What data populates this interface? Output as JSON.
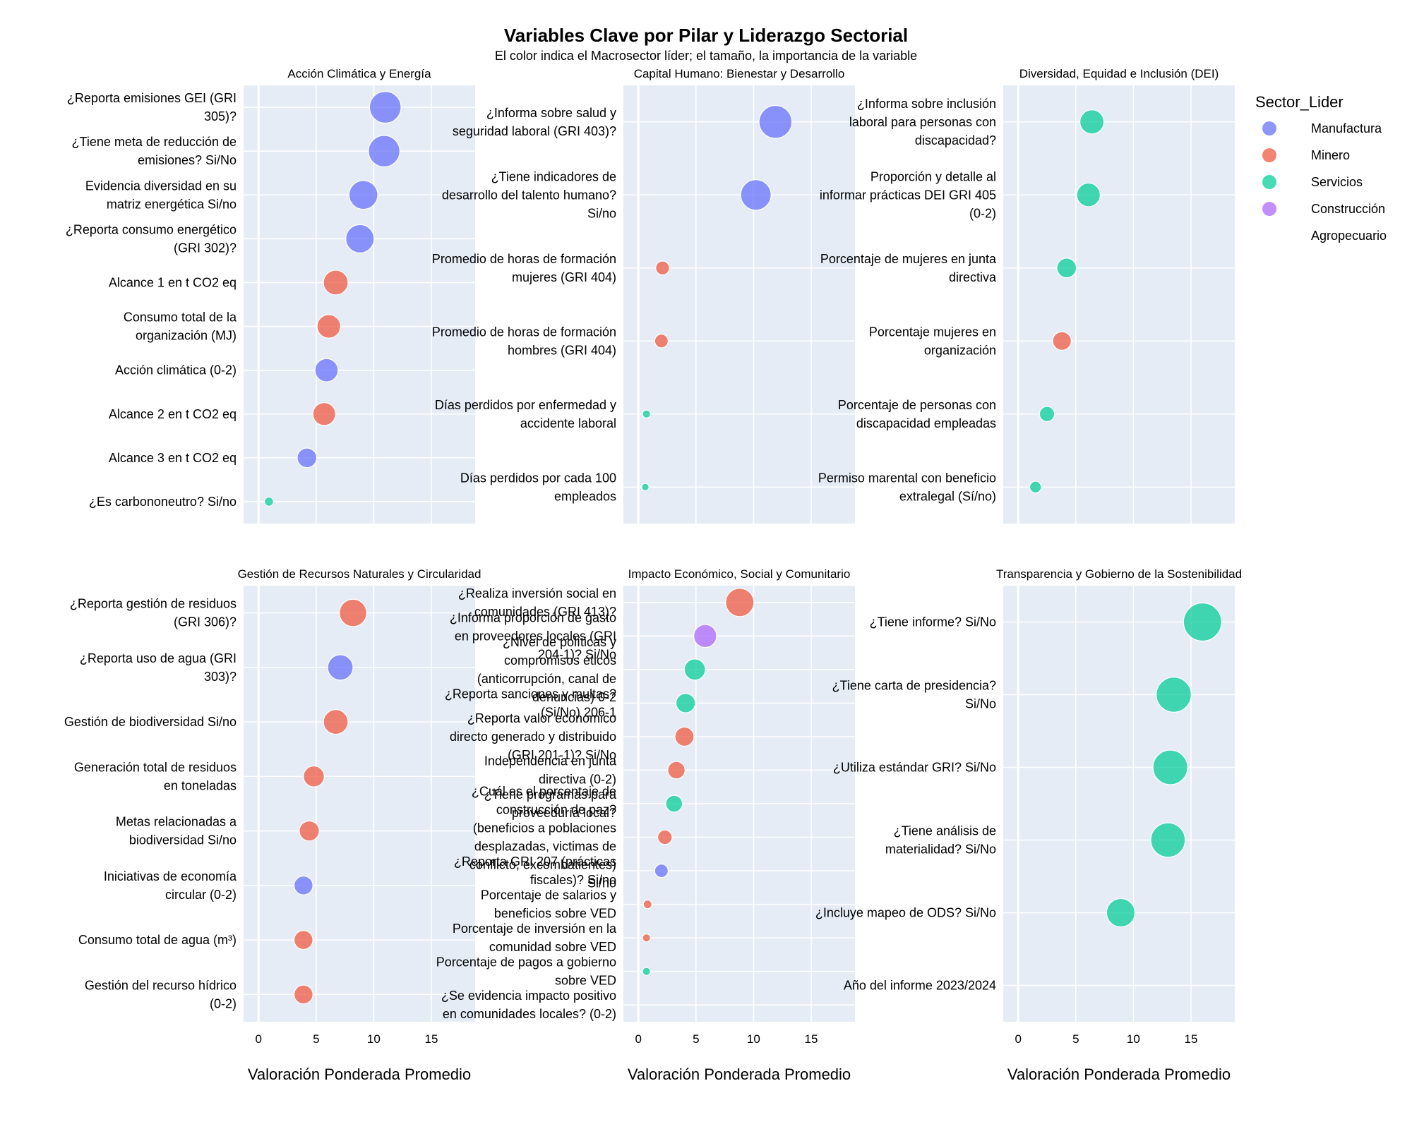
{
  "chart_data": {
    "type": "scatter",
    "title": "Variables Clave por Pilar y Liderazgo Sectorial",
    "subtitle": "El color indica el Macrosector líder; el tamaño, la importancia de la variable",
    "xlabel": "Valoración Ponderada Promedio",
    "xlim": [
      -1.3,
      18.8
    ],
    "xticks": [
      0,
      5,
      10,
      15
    ],
    "grid": true,
    "legend": {
      "title": "Sector_Lider",
      "placement": "top-right",
      "entries": [
        {
          "name": "Manufactura",
          "color": "#636efa"
        },
        {
          "name": "Minero",
          "color": "#ef553b"
        },
        {
          "name": "Servicios",
          "color": "#00cc96"
        },
        {
          "name": "Construcción",
          "color": "#ab63fa"
        },
        {
          "name": "Agropecuario",
          "color": ""
        }
      ]
    },
    "panels": [
      {
        "title": "Acción Climática y Energía",
        "points": [
          {
            "label": "¿Reporta emisiones GEI (GRI 305)?",
            "value": 11.0,
            "sector": "Manufactura"
          },
          {
            "label": "¿Tiene meta de reducción de emisiones? Si/No",
            "value": 10.9,
            "sector": "Manufactura"
          },
          {
            "label": "Evidencia diversidad en su matriz energética Si/no",
            "value": 9.1,
            "sector": "Manufactura"
          },
          {
            "label": "¿Reporta consumo energético (GRI 302)?",
            "value": 8.8,
            "sector": "Manufactura"
          },
          {
            "label": "Alcance 1 en t CO2 eq",
            "value": 6.7,
            "sector": "Minero"
          },
          {
            "label": "Consumo total de la organización (MJ)",
            "value": 6.1,
            "sector": "Minero"
          },
          {
            "label": "Acción climática (0-2)",
            "value": 5.9,
            "sector": "Manufactura"
          },
          {
            "label": "Alcance 2 en t CO2 eq",
            "value": 5.7,
            "sector": "Minero"
          },
          {
            "label": "Alcance 3 en t CO2 eq",
            "value": 4.2,
            "sector": "Manufactura"
          },
          {
            "label": "¿Es carbononeutro? Si/no",
            "value": 0.9,
            "sector": "Servicios"
          }
        ]
      },
      {
        "title": "Capital Humano: Bienestar y Desarrollo",
        "points": [
          {
            "label": "¿Informa sobre salud y seguridad laboral (GRI 403)?",
            "value": 11.9,
            "sector": "Manufactura"
          },
          {
            "label": "¿Tiene indicadores de desarrollo del talento humano? Si/no",
            "value": 10.2,
            "sector": "Manufactura"
          },
          {
            "label": "Promedio de horas de formación mujeres (GRI 404)",
            "value": 2.1,
            "sector": "Minero"
          },
          {
            "label": "Promedio de horas de formación hombres (GRI 404)",
            "value": 2.0,
            "sector": "Minero"
          },
          {
            "label": "Días perdidos por enfermedad y accidente laboral",
            "value": 0.7,
            "sector": "Servicios"
          },
          {
            "label": "Días perdidos por cada 100 empleados",
            "value": 0.6,
            "sector": "Servicios"
          }
        ]
      },
      {
        "title": "Diversidad, Equidad e Inclusión (DEI)",
        "points": [
          {
            "label": "¿Informa sobre inclusión laboral para personas con discapacidad?",
            "value": 6.4,
            "sector": "Servicios"
          },
          {
            "label": "Proporción y detalle al informar prácticas DEI GRI 405 (0-2)",
            "value": 6.1,
            "sector": "Servicios"
          },
          {
            "label": "Porcentaje de mujeres en junta directiva",
            "value": 4.2,
            "sector": "Servicios"
          },
          {
            "label": "Porcentaje mujeres en organización",
            "value": 3.8,
            "sector": "Minero"
          },
          {
            "label": "Porcentaje de personas con discapacidad empleadas",
            "value": 2.5,
            "sector": "Servicios"
          },
          {
            "label": "Permiso marental con beneficio extralegal (Sí/no)",
            "value": 1.5,
            "sector": "Servicios"
          }
        ]
      },
      {
        "title": "Gestión de Recursos Naturales y Circularidad",
        "points": [
          {
            "label": "¿Reporta gestión de residuos (GRI 306)?",
            "value": 8.2,
            "sector": "Minero"
          },
          {
            "label": "¿Reporta uso de agua (GRI 303)?",
            "value": 7.1,
            "sector": "Manufactura"
          },
          {
            "label": "Gestión de biodiversidad Si/no",
            "value": 6.7,
            "sector": "Minero"
          },
          {
            "label": "Generación total de residuos en toneladas",
            "value": 4.8,
            "sector": "Minero"
          },
          {
            "label": "Metas relacionadas a biodiversidad Si/no",
            "value": 4.4,
            "sector": "Minero"
          },
          {
            "label": "Iniciativas de economía circular (0-2)",
            "value": 3.9,
            "sector": "Manufactura"
          },
          {
            "label": "Consumo total de agua (m³)",
            "value": 3.9,
            "sector": "Minero"
          },
          {
            "label": "Gestión del recurso hídrico (0-2)",
            "value": 3.9,
            "sector": "Minero"
          }
        ]
      },
      {
        "title": "Impacto Económico, Social y Comunitario",
        "points": [
          {
            "label": "¿Realiza inversión social en comunidades (GRI 413)?",
            "value": 8.8,
            "sector": "Minero"
          },
          {
            "label": "¿Informa proporción de gasto en proveedores locales (GRI 204-1)? Si/No",
            "value": 5.8,
            "sector": "Construcción"
          },
          {
            "label": "¿Nivel de políticas y compromisos éticos (anticorrupción, canal de denuncias) 0-2",
            "value": 4.9,
            "sector": "Servicios"
          },
          {
            "label": "¿Reporta sanciones y multas? (Si/No) 206-1",
            "value": 4.1,
            "sector": "Servicios"
          },
          {
            "label": "¿Reporta valor económico directo generado y distribuido (GRI 201-1)? Si/No",
            "value": 4.0,
            "sector": "Minero"
          },
          {
            "label": "Independencia en junta directiva (0-2)",
            "value": 3.3,
            "sector": "Minero"
          },
          {
            "label": "¿Tiene programas para proveeduría local?",
            "value": 3.1,
            "sector": "Servicios"
          },
          {
            "label": "¿Cuál es el porcentaje de construcción de paz? (beneficios a poblaciones desplazadas, victimas de conflicto, excombatientes) Si/no",
            "value": 2.3,
            "sector": "Minero"
          },
          {
            "label": "¿Reporta GRI 207 (prácticas fiscales)? Si/no",
            "value": 2.0,
            "sector": "Manufactura"
          },
          {
            "label": "Porcentaje de salarios y beneficios sobre VED",
            "value": 0.8,
            "sector": "Minero"
          },
          {
            "label": "Porcentaje de inversión en la comunidad sobre VED",
            "value": 0.7,
            "sector": "Minero"
          },
          {
            "label": "Porcentaje de pagos a gobierno sobre VED",
            "value": 0.7,
            "sector": "Servicios"
          },
          {
            "label": "¿Se evidencia impacto positivo en comunidades locales? (0-2)",
            "value": 0.0,
            "sector": "Agropecuario"
          }
        ]
      },
      {
        "title": "Transparencia y Gobierno de la Sostenibilidad",
        "points": [
          {
            "label": "¿Tiene informe? Si/No",
            "value": 16.0,
            "sector": "Servicios"
          },
          {
            "label": "¿Tiene carta de presidencia? Si/No",
            "value": 13.5,
            "sector": "Servicios"
          },
          {
            "label": "¿Utiliza estándar GRI? Si/No",
            "value": 13.2,
            "sector": "Servicios"
          },
          {
            "label": "¿Tiene análisis de materialidad? Si/No",
            "value": 13.0,
            "sector": "Servicios"
          },
          {
            "label": "¿Incluye mapeo de ODS? Si/No",
            "value": 8.9,
            "sector": "Servicios"
          },
          {
            "label": "Año del informe 2023/2024",
            "value": 0.0,
            "sector": "Agropecuario"
          }
        ]
      }
    ]
  }
}
